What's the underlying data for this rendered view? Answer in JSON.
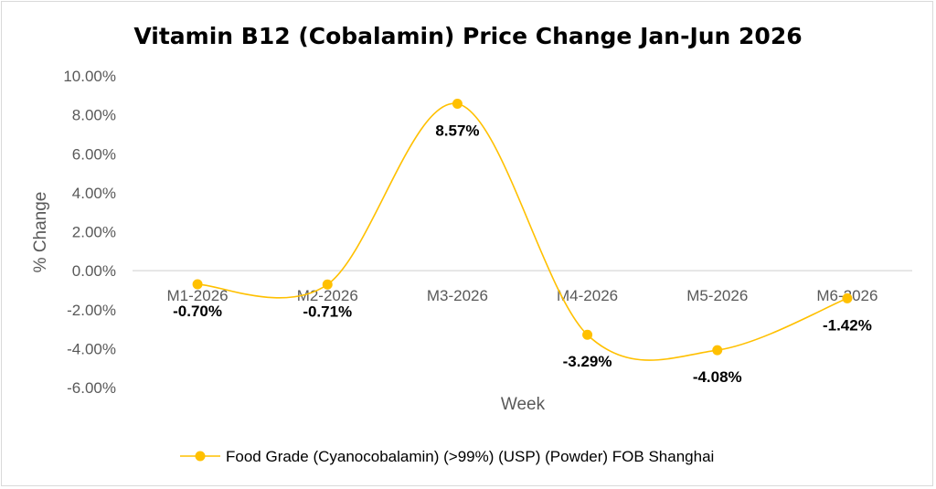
{
  "chart_data": {
    "type": "line",
    "title": "Vitamin B12 (Cobalamin) Price Change Jan-Jun 2026",
    "xlabel": "Week",
    "ylabel": "% Change",
    "categories": [
      "M1-2026",
      "M2-2026",
      "M3-2026",
      "M4-2026",
      "M5-2026",
      "M6-2026"
    ],
    "series": [
      {
        "name": "Food Grade (Cyanocobalamin) (>99%) (USP) (Powder) FOB Shanghai",
        "values": [
          -0.7,
          -0.71,
          8.57,
          -3.29,
          -4.08,
          -1.42
        ],
        "labels": [
          "-0.70%",
          "-0.71%",
          "8.57%",
          "-3.29%",
          "-4.08%",
          "-1.42%"
        ],
        "color": "#FFC000",
        "smooth": true
      }
    ],
    "ylim": [
      -6,
      10
    ],
    "yticks": [
      10,
      8,
      6,
      4,
      2,
      0,
      -2,
      -4,
      -6
    ],
    "ytick_labels": [
      "10.00%",
      "8.00%",
      "6.00%",
      "4.00%",
      "2.00%",
      "0.00%",
      "-2.00%",
      "-4.00%",
      "-6.00%"
    ],
    "grid": false,
    "legend_position": "bottom"
  }
}
